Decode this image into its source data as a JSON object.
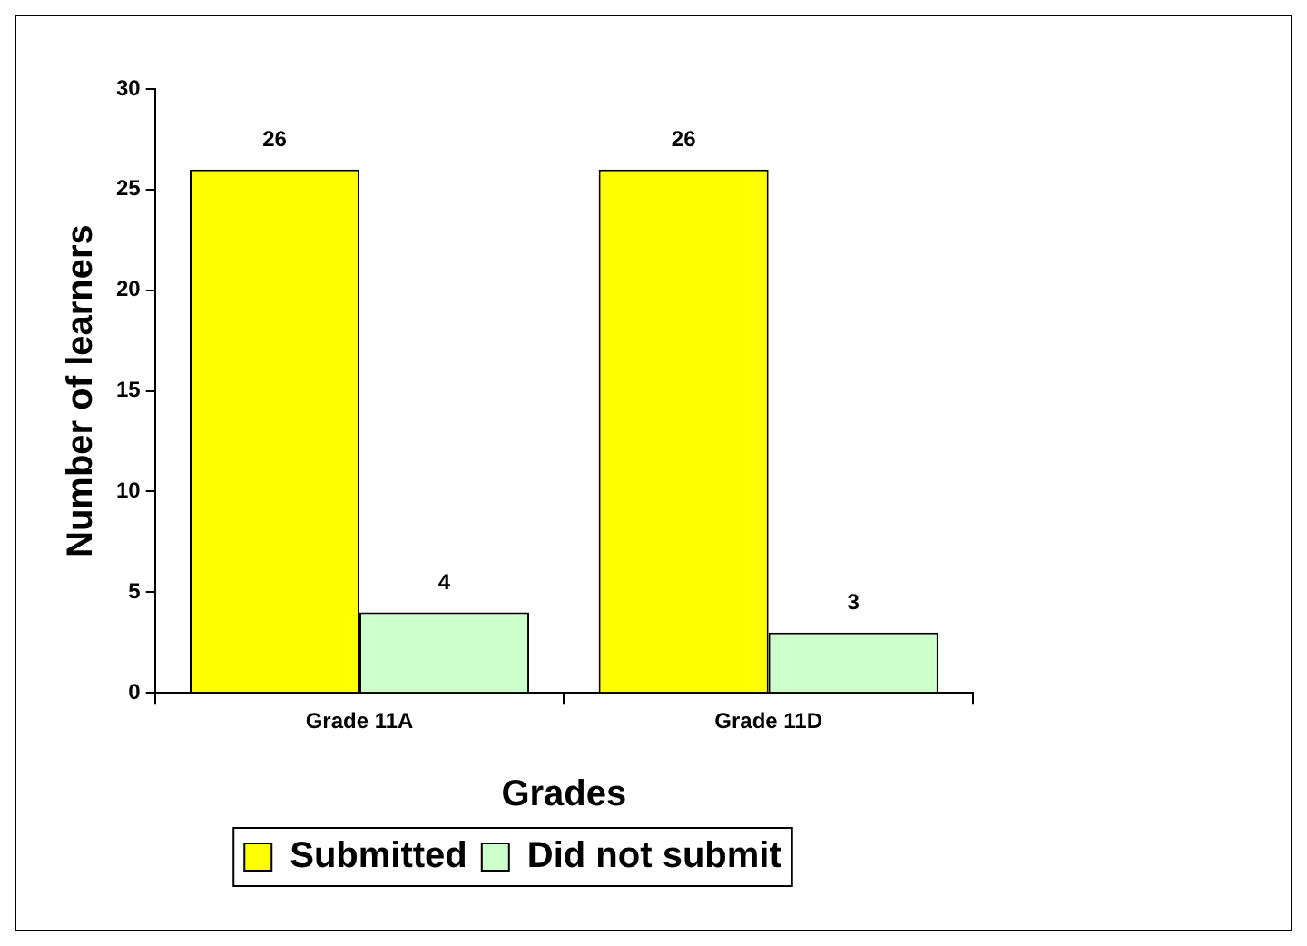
{
  "chart_data": {
    "type": "bar",
    "xlabel": "Grades",
    "ylabel": "Number of learners",
    "categories": [
      "Grade 11A",
      "Grade 11D"
    ],
    "series": [
      {
        "name": "Submitted",
        "color": "#ffff00",
        "values": [
          26,
          26
        ]
      },
      {
        "name": "Did not submit",
        "color": "#ccffcc",
        "values": [
          4,
          3
        ]
      }
    ],
    "ylim": [
      0,
      30
    ],
    "yticks": [
      0,
      5,
      10,
      15,
      20,
      25,
      30
    ],
    "grid": false,
    "legend": "bottom",
    "data_labels": true
  }
}
